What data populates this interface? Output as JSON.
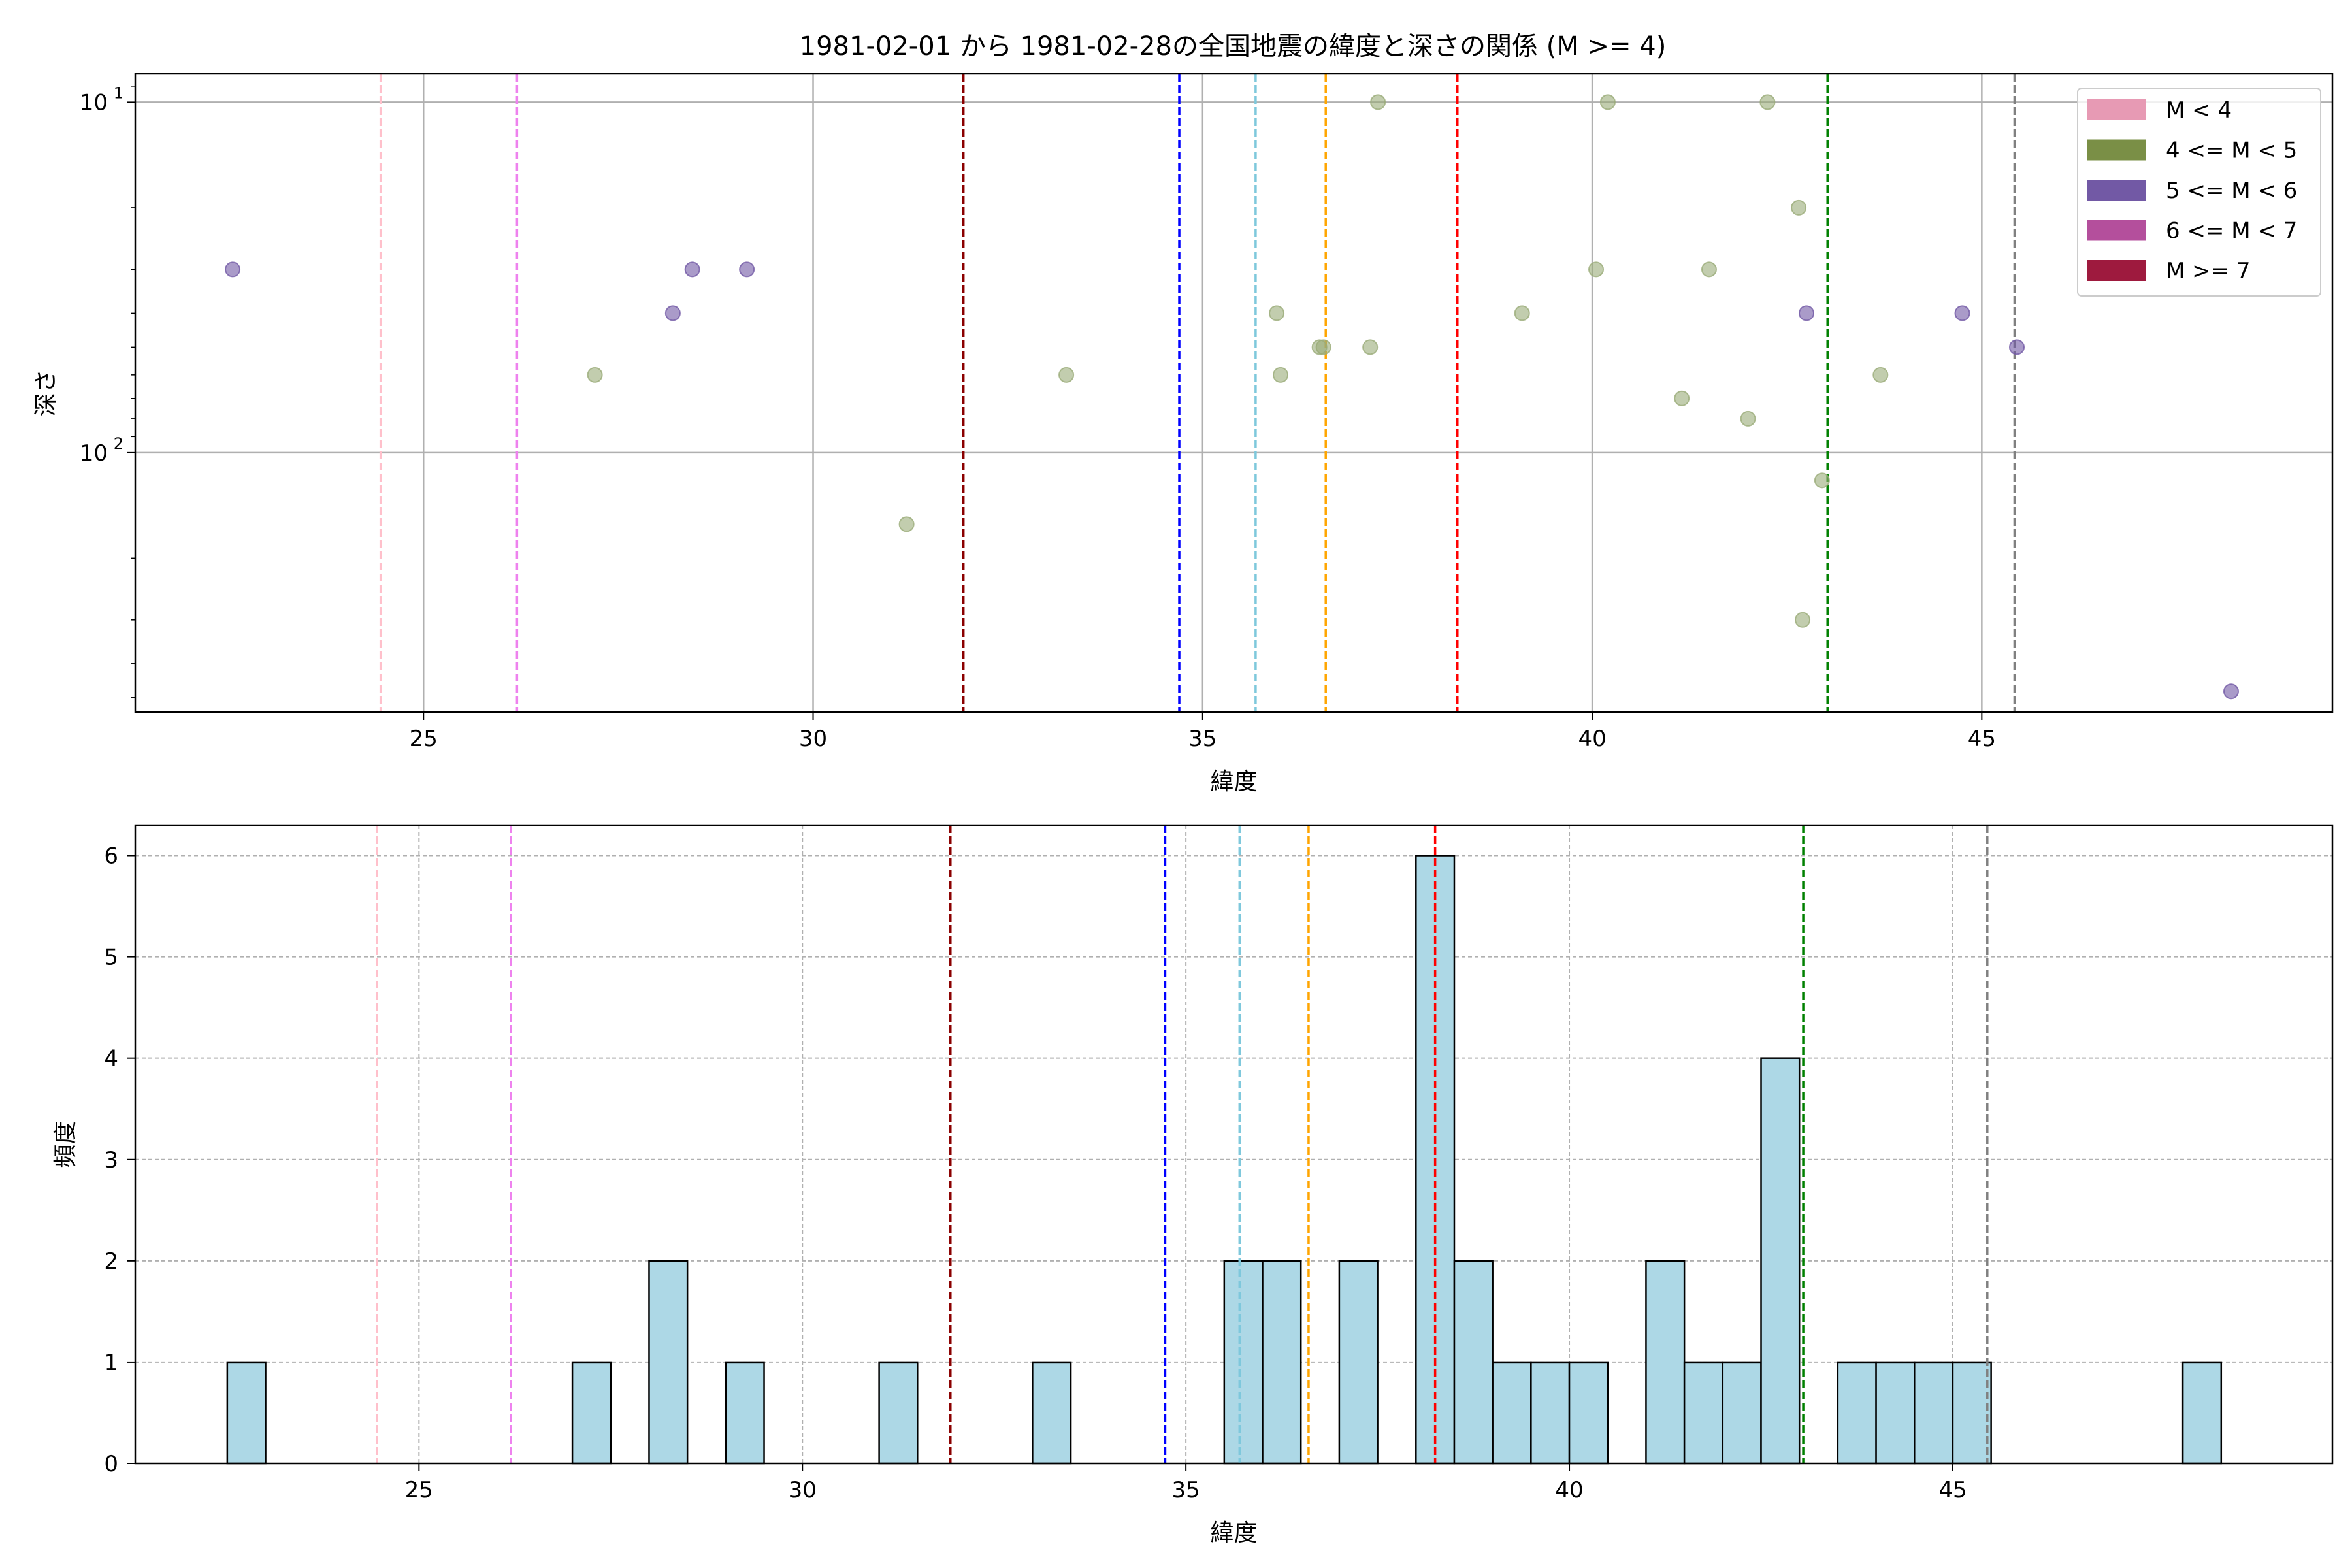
{
  "figure_title": "1981-02-01 から 1981-02-28の全国地震の緯度と深さの関係 (M >= 4)",
  "colors": {
    "vlines": [
      "#ffc0cb",
      "#ee82ee",
      "#8b0000",
      "#0000ff",
      "#7ec8dc",
      "#ffa500",
      "#ff0000",
      "#008000",
      "#808080"
    ],
    "hist_fill": "#add8e6",
    "axis": "#000000",
    "grid": "#b0b0b0"
  },
  "chart_data": [
    {
      "type": "scatter",
      "title": "1981-02-01 から 1981-02-28の全国地震の緯度と深さの関係 (M >= 4)",
      "xlabel": "緯度",
      "ylabel": "深さ",
      "xlim": [
        21.3,
        49.5
      ],
      "ylim": [
        550,
        8.3
      ],
      "yscale": "log",
      "inverted_y": true,
      "grid": true,
      "x_ticks": [
        25,
        30,
        35,
        40,
        45
      ],
      "y_ticks": [
        {
          "value": 10,
          "label": "10",
          "exp": "1"
        },
        {
          "value": 100,
          "label": "10",
          "exp": "2"
        }
      ],
      "vertical_lines": [
        24.45,
        26.2,
        31.93,
        34.7,
        35.68,
        36.58,
        38.27,
        43.02,
        45.42
      ],
      "legend": {
        "placement": "top-right",
        "entries": [
          {
            "label": "M < 4",
            "color": "#e79ab4"
          },
          {
            "label": "4 <= M < 5",
            "color": "#7a8f46"
          },
          {
            "label": "5 <= M < 6",
            "color": "#7259a5"
          },
          {
            "label": "6 <= M < 7",
            "color": "#b44f9c"
          },
          {
            "label": "M >= 7",
            "color": "#9e1a3e"
          }
        ]
      },
      "series": [
        {
          "name": "4 <= M < 5",
          "color": "#9aab78",
          "points": [
            [
              27.2,
              60
            ],
            [
              31.2,
              160
            ],
            [
              33.25,
              60
            ],
            [
              35.95,
              40
            ],
            [
              36.0,
              60
            ],
            [
              36.5,
              50
            ],
            [
              36.55,
              50
            ],
            [
              37.15,
              50
            ],
            [
              37.25,
              10
            ],
            [
              39.1,
              40
            ],
            [
              40.05,
              30
            ],
            [
              40.2,
              10
            ],
            [
              41.15,
              70
            ],
            [
              41.5,
              30
            ],
            [
              42.0,
              80
            ],
            [
              42.25,
              10
            ],
            [
              42.65,
              20
            ],
            [
              42.7,
              300
            ],
            [
              42.95,
              120
            ],
            [
              43.7,
              60
            ]
          ]
        },
        {
          "name": "5 <= M < 6",
          "color": "#7259a5",
          "points": [
            [
              22.55,
              30
            ],
            [
              28.2,
              40
            ],
            [
              28.45,
              30
            ],
            [
              29.15,
              30
            ],
            [
              42.75,
              40
            ],
            [
              44.75,
              40
            ],
            [
              45.45,
              50
            ],
            [
              48.2,
              480
            ]
          ]
        }
      ]
    },
    {
      "type": "bar",
      "title": "",
      "xlabel": "緯度",
      "ylabel": "頻度",
      "xlim": [
        21.3,
        49.95
      ],
      "ylim": [
        0,
        6.3
      ],
      "grid": true,
      "x_ticks": [
        25,
        30,
        35,
        40,
        45
      ],
      "y_ticks": [
        0,
        1,
        2,
        3,
        4,
        5,
        6
      ],
      "bin_width": 0.5,
      "vertical_lines": [
        24.45,
        26.2,
        31.93,
        34.73,
        35.7,
        36.6,
        38.25,
        43.05,
        45.45
      ],
      "bins": [
        [
          22.5,
          1
        ],
        [
          27.0,
          1
        ],
        [
          28.0,
          2
        ],
        [
          29.0,
          1
        ],
        [
          31.0,
          1
        ],
        [
          33.0,
          1
        ],
        [
          35.5,
          2
        ],
        [
          36.0,
          2
        ],
        [
          37.0,
          2
        ],
        [
          38.0,
          6
        ],
        [
          38.5,
          2
        ],
        [
          39.0,
          1
        ],
        [
          39.5,
          1
        ],
        [
          40.0,
          1
        ],
        [
          41.0,
          2
        ],
        [
          41.5,
          1
        ],
        [
          42.0,
          1
        ],
        [
          42.5,
          4
        ],
        [
          43.5,
          1
        ],
        [
          44.0,
          1
        ],
        [
          44.5,
          1
        ],
        [
          45.0,
          1
        ],
        [
          48.0,
          1
        ]
      ]
    }
  ]
}
